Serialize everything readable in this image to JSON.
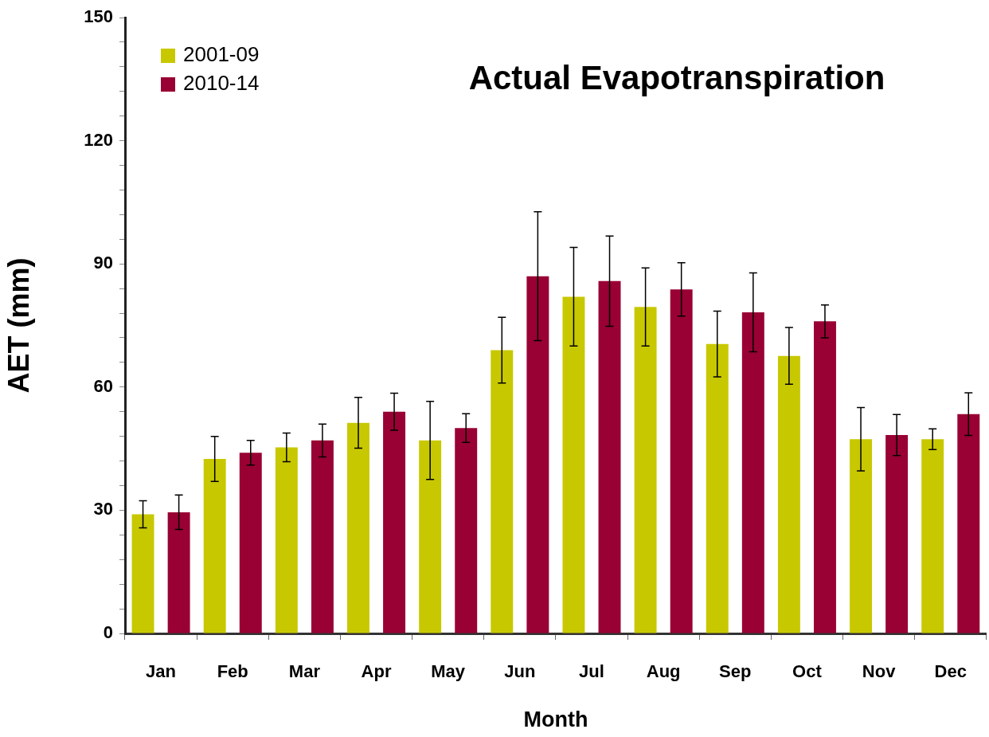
{
  "chart_data": {
    "type": "bar",
    "title": "Actual Evapotranspiration",
    "xlabel": "Month",
    "ylabel": "AET (mm)",
    "categories": [
      "Jan",
      "Feb",
      "Mar",
      "Apr",
      "May",
      "Jun",
      "Jul",
      "Aug",
      "Sep",
      "Oct",
      "Nov",
      "Dec"
    ],
    "series": [
      {
        "name": "2001-09",
        "color": "#c8c800",
        "values": [
          29,
          42.5,
          45.3,
          51.3,
          47,
          69,
          82,
          79.5,
          70.5,
          67.6,
          47.3,
          47.3
        ],
        "errors": [
          3.3,
          5.5,
          3.5,
          6.2,
          9.5,
          8,
          12,
          9.5,
          8,
          6.9,
          7.7,
          2.5
        ]
      },
      {
        "name": "2010-14",
        "color": "#990033",
        "values": [
          29.5,
          44,
          47,
          54,
          50,
          87,
          85.8,
          83.8,
          78.2,
          76,
          48.3,
          53.4
        ],
        "errors": [
          4.2,
          3,
          4,
          4.5,
          3.5,
          15.7,
          11,
          6.5,
          9.6,
          4,
          5,
          5.2
        ]
      }
    ],
    "ylim": [
      0,
      150
    ],
    "yticks": [
      0,
      {
        "value": 6,
        "label": null
      },
      {
        "value": 12,
        "label": null
      },
      {
        "value": 18,
        "label": null
      },
      {
        "value": 24,
        "label": null
      },
      30,
      {
        "value": 36,
        "label": null
      },
      {
        "value": 42,
        "label": null
      },
      {
        "value": 48,
        "label": null
      },
      {
        "value": 54,
        "label": null
      },
      60,
      {
        "value": 66,
        "label": null
      },
      {
        "value": 72,
        "label": null
      },
      {
        "value": 78,
        "label": null
      },
      {
        "value": 84,
        "label": null
      },
      90,
      {
        "value": 96,
        "label": null
      },
      {
        "value": 102,
        "label": null
      },
      {
        "value": 108,
        "label": null
      },
      {
        "value": 114,
        "label": null
      },
      120,
      {
        "value": 126,
        "label": null
      },
      {
        "value": 132,
        "label": null
      },
      {
        "value": 138,
        "label": null
      },
      {
        "value": 144,
        "label": null
      },
      150
    ],
    "grid": false,
    "legend": "top left"
  }
}
